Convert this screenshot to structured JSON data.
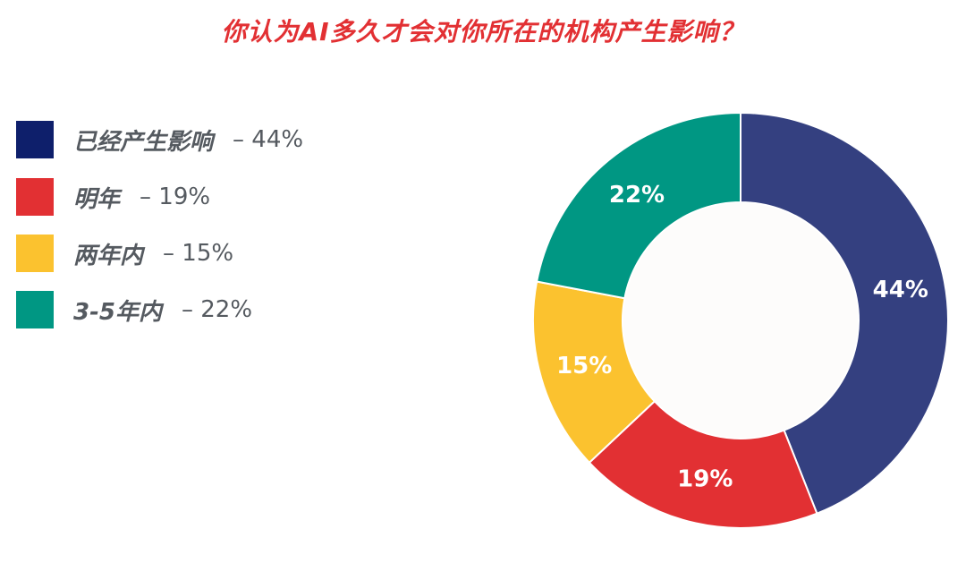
{
  "chart_data": {
    "type": "pie",
    "title": "你认为AI多久才会对你所在的机构产生影响？",
    "donut": true,
    "legend_position": "left",
    "slices": [
      {
        "label": "已经产生影响",
        "value": 44,
        "value_label": "44%",
        "color": "#344080"
      },
      {
        "label": "明年",
        "value": 19,
        "value_label": "19%",
        "color": "#e23033"
      },
      {
        "label": "两年内",
        "value": 15,
        "value_label": "15%",
        "color": "#fbc22f"
      },
      {
        "label": "3-5年内",
        "value": 22,
        "value_label": "22%",
        "color": "#009783"
      }
    ],
    "legend_swatch_colors": [
      "#0e1f6b",
      "#e23033",
      "#fbc22f",
      "#009783"
    ]
  }
}
